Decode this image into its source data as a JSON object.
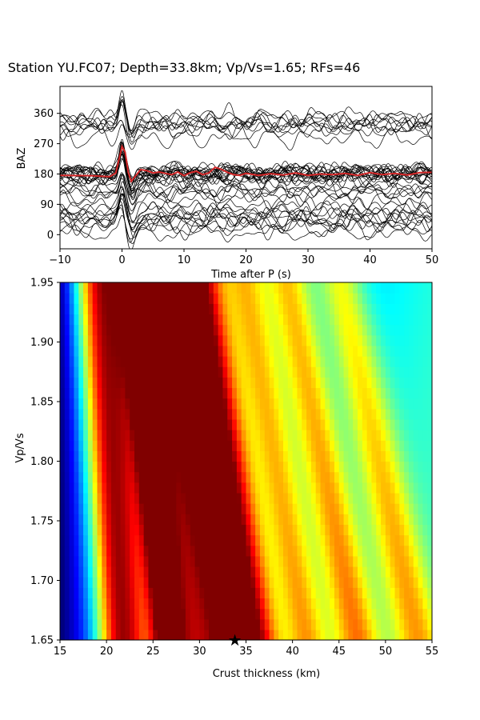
{
  "title": "Station YU.FC07; Depth=33.8km; Vp/Vs=1.65; RFs=46",
  "chart_data": [
    {
      "type": "line",
      "xlabel": "Time after P (s)",
      "ylabel": "BAZ",
      "xlim": [
        -10,
        50
      ],
      "ylim": [
        -42,
        440
      ],
      "xticks": [
        "−10",
        "0",
        "10",
        "20",
        "30",
        "40",
        "50"
      ],
      "yticks": [
        "0",
        "90",
        "180",
        "270",
        "360"
      ],
      "trace_count": 46,
      "trace_color": "#000000",
      "stack_color": "#d62728",
      "stack_baseline_baz": 180,
      "stack_series": {
        "name": "",
        "x": [
          -10,
          -5,
          -2,
          -1,
          0,
          0.5,
          1,
          1.5,
          2,
          3,
          4,
          5,
          6,
          7,
          8,
          9,
          10,
          11,
          12,
          13,
          14,
          15,
          16,
          17,
          18,
          19,
          20,
          22,
          24,
          26,
          28,
          30,
          32,
          34,
          36,
          38,
          40,
          42,
          44,
          46,
          48,
          50
        ],
        "y": [
          176,
          175,
          172,
          183,
          262,
          245,
          185,
          158,
          170,
          193,
          190,
          183,
          186,
          182,
          178,
          186,
          175,
          184,
          188,
          178,
          183,
          200,
          194,
          185,
          178,
          176,
          182,
          176,
          181,
          177,
          183,
          176,
          180,
          178,
          182,
          176,
          184,
          178,
          182,
          177,
          184,
          185
        ]
      }
    },
    {
      "type": "heatmap",
      "xlabel": "Crust thickness (km)",
      "ylabel": "Vp/Vs",
      "xlim": [
        15,
        55
      ],
      "ylim": [
        1.65,
        1.95
      ],
      "xticks": [
        "15",
        "20",
        "25",
        "30",
        "35",
        "40",
        "45",
        "50",
        "55"
      ],
      "yticks": [
        "1.65",
        "1.70",
        "1.75",
        "1.80",
        "1.85",
        "1.90",
        "1.95"
      ],
      "colormap": "jet",
      "best_fit": {
        "thickness": 33.8,
        "vpvs": 1.65,
        "marker": "star"
      },
      "ridges": [
        {
          "thickness_at_1_65": 21.5,
          "slope_km_per_unit": -8,
          "amp": 0.6,
          "width_km": 2.6
        },
        {
          "thickness_at_1_65": 26.5,
          "slope_km_per_unit": -12,
          "amp": 0.58,
          "width_km": 1.8
        },
        {
          "thickness_at_1_65": 34.2,
          "slope_km_per_unit": -20,
          "amp": 0.75,
          "width_km": 2.3
        },
        {
          "thickness_at_1_65": 30.0,
          "slope_km_per_unit": -15,
          "amp": 0.45,
          "width_km": 3.5
        },
        {
          "thickness_at_1_65": 37.0,
          "slope_km_per_unit": -20,
          "amp": 0.3,
          "width_km": 2.0
        },
        {
          "thickness_at_1_65": 41.5,
          "slope_km_per_unit": -22,
          "amp": 0.28,
          "width_km": 2.2
        },
        {
          "thickness_at_1_65": 47.0,
          "slope_km_per_unit": -25,
          "amp": 0.32,
          "width_km": 2.4
        },
        {
          "thickness_at_1_65": 53.5,
          "slope_km_per_unit": -28,
          "amp": 0.28,
          "width_km": 2.5
        }
      ],
      "background": {
        "base": 0.45,
        "left_falloff_start_km": 23,
        "left_falloff_amp": 0.5
      }
    }
  ]
}
